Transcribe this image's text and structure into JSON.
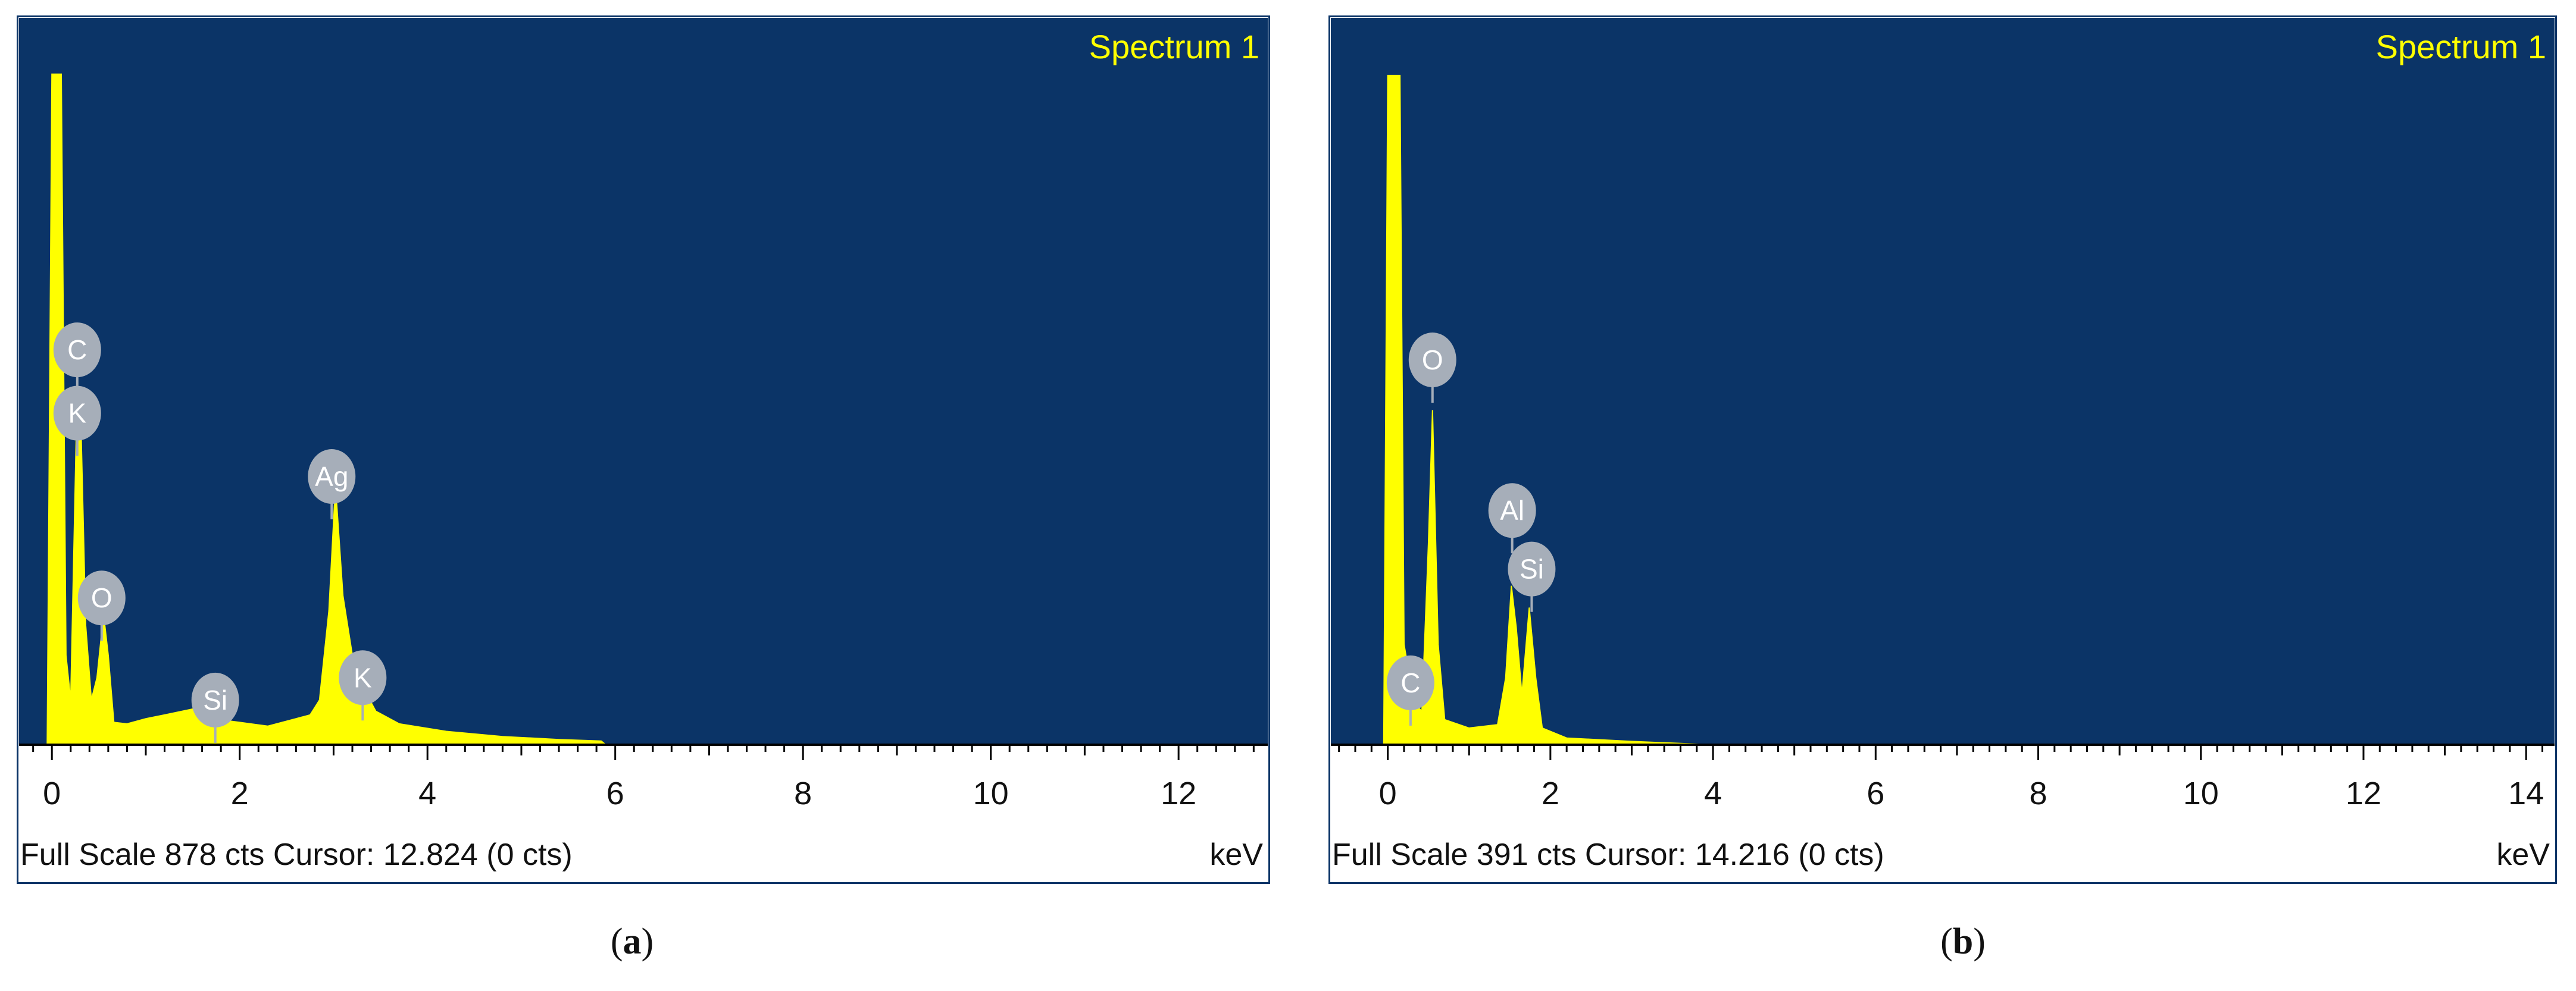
{
  "colors": {
    "plot_background": "#0b3467",
    "spectrum_fill": "#ffff00",
    "title_text": "#ffff00",
    "peak_label_fill": "#a6aeb9",
    "peak_label_text": "#ffffff",
    "axis": "#000000"
  },
  "panels": [
    {
      "caption_letter": "a",
      "caption_open": "(",
      "caption_close": ")",
      "title": "Spectrum 1",
      "footer_left": "Full Scale 878 cts Cursor: 12.824  (0 cts)",
      "footer_unit": "keV",
      "chart_data": {
        "type": "area",
        "title": "Spectrum 1",
        "xlabel": "keV",
        "ylabel": "",
        "xlim": [
          -0.35,
          12.95
        ],
        "ylim": [
          0,
          878
        ],
        "full_scale_cts": 878,
        "cursor_kev": 12.824,
        "cursor_cts": 0,
        "x_ticks": [
          0,
          2,
          4,
          6,
          8,
          10,
          12
        ],
        "grid": false,
        "spectrum": [
          [
            -0.05,
            0
          ],
          [
            0.0,
            900
          ],
          [
            0.1,
            900
          ],
          [
            0.15,
            120
          ],
          [
            0.2,
            60
          ],
          [
            0.26,
            420
          ],
          [
            0.3,
            480
          ],
          [
            0.36,
            160
          ],
          [
            0.42,
            60
          ],
          [
            0.48,
            90
          ],
          [
            0.55,
            175
          ],
          [
            0.6,
            120
          ],
          [
            0.66,
            30
          ],
          [
            0.8,
            28
          ],
          [
            1.0,
            35
          ],
          [
            1.2,
            40
          ],
          [
            1.5,
            48
          ],
          [
            1.7,
            35
          ],
          [
            2.0,
            30
          ],
          [
            2.3,
            25
          ],
          [
            2.6,
            35
          ],
          [
            2.75,
            40
          ],
          [
            2.85,
            60
          ],
          [
            2.95,
            180
          ],
          [
            3.02,
            348
          ],
          [
            3.1,
            200
          ],
          [
            3.2,
            120
          ],
          [
            3.3,
            80
          ],
          [
            3.45,
            45
          ],
          [
            3.7,
            28
          ],
          [
            4.2,
            18
          ],
          [
            4.8,
            11
          ],
          [
            5.4,
            7
          ],
          [
            5.85,
            5
          ],
          [
            5.9,
            0
          ],
          [
            12.9,
            0
          ]
        ],
        "peaks": [
          {
            "element": "C",
            "kev": 0.27,
            "cts": 530
          },
          {
            "element": "K",
            "kev": 0.27,
            "cts": 445
          },
          {
            "element": "O",
            "kev": 0.53,
            "cts": 197
          },
          {
            "element": "Si",
            "kev": 1.74,
            "cts": 60
          },
          {
            "element": "Ag",
            "kev": 2.98,
            "cts": 360
          },
          {
            "element": "K",
            "kev": 3.31,
            "cts": 90
          }
        ]
      }
    },
    {
      "caption_letter": "b",
      "caption_open": "(",
      "caption_close": ")",
      "title": "Spectrum 1",
      "footer_left": "Full Scale 391 cts Cursor: 14.216  (0 cts)",
      "footer_unit": "keV",
      "chart_data": {
        "type": "area",
        "title": "Spectrum 1",
        "xlabel": "keV",
        "ylabel": "",
        "xlim": [
          -0.7,
          14.35
        ],
        "ylim": [
          0,
          391
        ],
        "full_scale_cts": 391,
        "cursor_kev": 14.216,
        "cursor_cts": 0,
        "x_ticks": [
          0,
          2,
          4,
          6,
          8,
          10,
          12,
          14
        ],
        "grid": false,
        "spectrum": [
          [
            -0.05,
            0
          ],
          [
            0.0,
            400
          ],
          [
            0.15,
            400
          ],
          [
            0.2,
            60
          ],
          [
            0.27,
            40
          ],
          [
            0.32,
            25
          ],
          [
            0.42,
            20
          ],
          [
            0.5,
            120
          ],
          [
            0.55,
            200
          ],
          [
            0.62,
            60
          ],
          [
            0.7,
            15
          ],
          [
            1.0,
            10
          ],
          [
            1.35,
            12
          ],
          [
            1.45,
            40
          ],
          [
            1.52,
            95
          ],
          [
            1.58,
            70
          ],
          [
            1.65,
            30
          ],
          [
            1.74,
            82
          ],
          [
            1.82,
            40
          ],
          [
            1.9,
            10
          ],
          [
            2.2,
            4
          ],
          [
            3.0,
            2
          ],
          [
            4.0,
            0
          ],
          [
            14.3,
            0
          ]
        ],
        "peaks": [
          {
            "element": "O",
            "kev": 0.55,
            "cts": 230
          },
          {
            "element": "C",
            "kev": 0.28,
            "cts": 37
          },
          {
            "element": "Al",
            "kev": 1.53,
            "cts": 140
          },
          {
            "element": "Si",
            "kev": 1.77,
            "cts": 105
          }
        ]
      }
    }
  ]
}
